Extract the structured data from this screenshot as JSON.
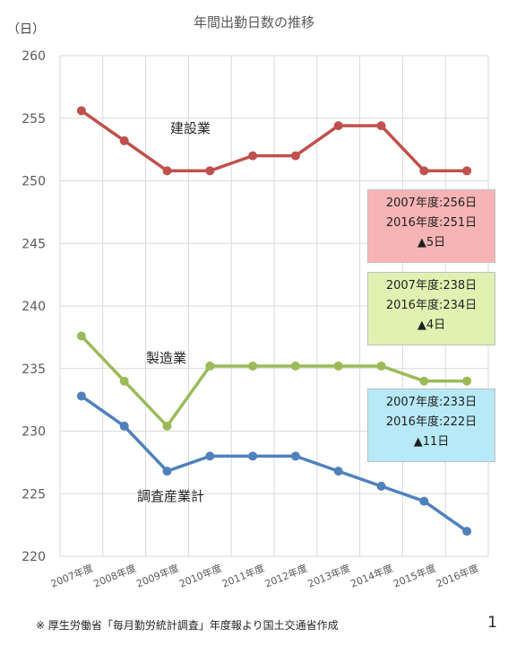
{
  "chart_data": {
    "type": "line",
    "title": "年間出勤日数の推移",
    "unit": "（日）",
    "categories": [
      "2007年度",
      "2008年度",
      "2009年度",
      "2010年度",
      "2011年度",
      "2012年度",
      "2013年度",
      "2014年度",
      "2015年度",
      "2016年度"
    ],
    "ylim": [
      220,
      260
    ],
    "yticks": [
      220,
      225,
      230,
      235,
      240,
      245,
      250,
      255,
      260
    ],
    "grid": true,
    "series": [
      {
        "name": "建設業",
        "color": "#c0504d",
        "values": [
          255.6,
          253.2,
          250.8,
          250.8,
          252.0,
          252.0,
          254.4,
          254.4,
          250.8,
          250.8
        ]
      },
      {
        "name": "製造業",
        "color": "#9bbb59",
        "values": [
          237.6,
          234.0,
          230.4,
          235.2,
          235.2,
          235.2,
          235.2,
          235.2,
          234.0,
          234.0
        ]
      },
      {
        "name": "調査産業計",
        "color": "#4f81bd",
        "values": [
          232.8,
          230.4,
          226.8,
          228.0,
          228.0,
          228.0,
          226.8,
          225.6,
          224.4,
          222.0
        ]
      }
    ],
    "annotations": [
      {
        "line1": "2007年度:256日",
        "line2": "2016年度:251日",
        "line3": "▲5日",
        "bg": "#f8b4b4"
      },
      {
        "line1": "2007年度:238日",
        "line2": "2016年度:234日",
        "line3": "▲4日",
        "bg": "#dff2b2"
      },
      {
        "line1": "2007年度:233日",
        "line2": "2016年度:222日",
        "line3": "▲11日",
        "bg": "#b7e9f7"
      }
    ]
  },
  "footnote": "※ 厚生労働省「毎月勤労統計調査」年度報より国土交通省作成",
  "page_number": "1"
}
